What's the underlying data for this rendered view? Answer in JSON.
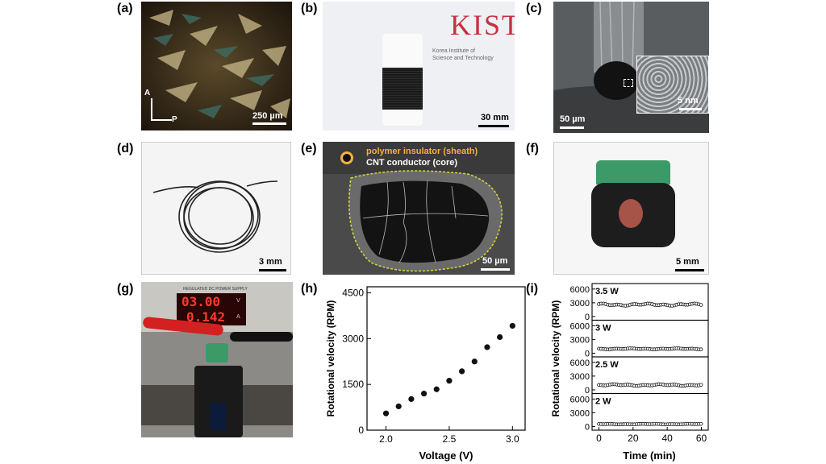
{
  "panels": {
    "a": {
      "label": "(a)",
      "scale": "250 µm",
      "axis_a": "A",
      "axis_p": "P"
    },
    "b": {
      "label": "(b)",
      "scale": "30 mm",
      "logo_text": "KIST",
      "logo_line1": "Korea Institute of",
      "logo_line2": "Science and Technology"
    },
    "c": {
      "label": "(c)",
      "scale": "50 µm",
      "inset_scale": "5 nm"
    },
    "d": {
      "label": "(d)",
      "scale": "3 mm"
    },
    "e": {
      "label": "(e)",
      "scale": "50 µm",
      "legend_sheath": "polymer insulator (sheath)",
      "legend_core": "CNT conductor (core)"
    },
    "f": {
      "label": "(f)",
      "scale": "5 mm"
    },
    "g": {
      "label": "(g)",
      "supply_header": "REGULATED DC POWER SUPPLY",
      "voltage_readout": "03.00",
      "current_readout": "0.142",
      "unit_v": "V",
      "unit_a": "A"
    },
    "h": {
      "label": "(h)"
    },
    "i": {
      "label": "(i)"
    }
  },
  "chart_data": [
    {
      "type": "scatter",
      "panel": "h",
      "xlabel": "Voltage (V)",
      "ylabel": "Rotational velocity (RPM)",
      "xlim": [
        1.85,
        3.1
      ],
      "ylim": [
        0,
        4700
      ],
      "xticks": [
        2.0,
        2.5,
        3.0
      ],
      "xtick_labels": [
        "2.0",
        "2.5",
        "3.0"
      ],
      "yticks": [
        0,
        1500,
        3000,
        4500
      ],
      "ytick_labels": [
        "0",
        "1500",
        "3000",
        "4500"
      ],
      "x": [
        2.0,
        2.1,
        2.2,
        2.3,
        2.4,
        2.5,
        2.6,
        2.7,
        2.8,
        2.9,
        3.0
      ],
      "y": [
        550,
        780,
        1020,
        1200,
        1340,
        1620,
        1930,
        2250,
        2720,
        3050,
        3420
      ]
    },
    {
      "type": "scatter",
      "panel": "i",
      "xlabel": "Time (min)",
      "ylabel": "Rotational velocity (RPM)",
      "xlim": [
        -4,
        64
      ],
      "xticks": [
        0,
        20,
        40,
        60
      ],
      "xtick_labels": [
        "0",
        "20",
        "40",
        "60"
      ],
      "yticks": [
        0,
        3000,
        6000
      ],
      "ytick_labels": [
        "0",
        "3000",
        "6000"
      ],
      "ylim": [
        -800,
        7200
      ],
      "series": [
        {
          "name": "3.5 W",
          "level": 2600,
          "noise": 250
        },
        {
          "name": "3 W",
          "level": 950,
          "noise": 120
        },
        {
          "name": "2.5 W",
          "level": 1050,
          "noise": 200
        },
        {
          "name": "2 W",
          "level": 520,
          "noise": 60
        }
      ]
    }
  ]
}
